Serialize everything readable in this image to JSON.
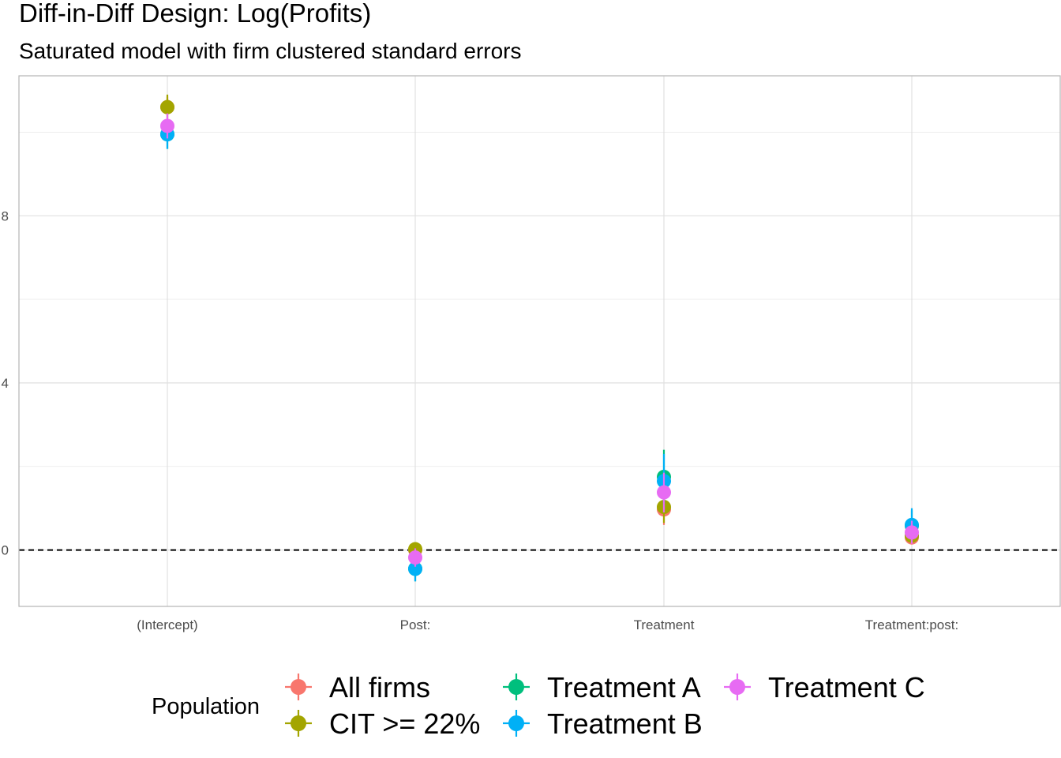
{
  "chart_data": {
    "type": "scatter",
    "title": "Diff-in-Diff Design: Log(Profits)",
    "subtitle": "Saturated model with firm clustered standard errors",
    "xlabel": "",
    "ylabel": "",
    "categories": [
      "(Intercept)",
      "Post:",
      "Treatment",
      "Treatment:post:"
    ],
    "y_ticks": [
      0,
      4,
      8
    ],
    "y_tick_labels": [
      "0",
      "4",
      "8"
    ],
    "ylim": [
      -1.35,
      11.35
    ],
    "grid": true,
    "reference_line": {
      "y": 0,
      "style": "dashed",
      "color": "#000000"
    },
    "legend": {
      "title": "Population",
      "position": "bottom"
    },
    "series": [
      {
        "name": "All firms",
        "color": "#F8766D",
        "values": [
          10.6,
          0.0,
          0.97,
          0.3
        ],
        "lower": [
          10.35,
          -0.1,
          0.6,
          0.15
        ],
        "upper": [
          10.85,
          0.1,
          1.35,
          0.45
        ]
      },
      {
        "name": "CIT >= 22%",
        "color": "#A3A500",
        "values": [
          10.6,
          0.02,
          1.03,
          0.34
        ],
        "lower": [
          10.3,
          -0.1,
          0.65,
          0.2
        ],
        "upper": [
          10.9,
          0.14,
          1.4,
          0.5
        ]
      },
      {
        "name": "Treatment A",
        "color": "#00BF7D",
        "values": [
          9.95,
          -0.45,
          1.75,
          0.58
        ],
        "lower": [
          9.6,
          -0.75,
          1.1,
          0.2
        ],
        "upper": [
          10.3,
          -0.15,
          2.4,
          0.95
        ]
      },
      {
        "name": "Treatment B",
        "color": "#00B0F6",
        "values": [
          9.95,
          -0.45,
          1.65,
          0.6
        ],
        "lower": [
          9.6,
          -0.75,
          1.0,
          0.25
        ],
        "upper": [
          10.3,
          -0.15,
          2.3,
          1.0
        ]
      },
      {
        "name": "Treatment C",
        "color": "#E76BF3",
        "values": [
          10.15,
          -0.18,
          1.38,
          0.42
        ],
        "lower": [
          9.85,
          -0.4,
          0.9,
          0.15
        ],
        "upper": [
          10.45,
          0.04,
          1.85,
          0.7
        ]
      }
    ]
  }
}
